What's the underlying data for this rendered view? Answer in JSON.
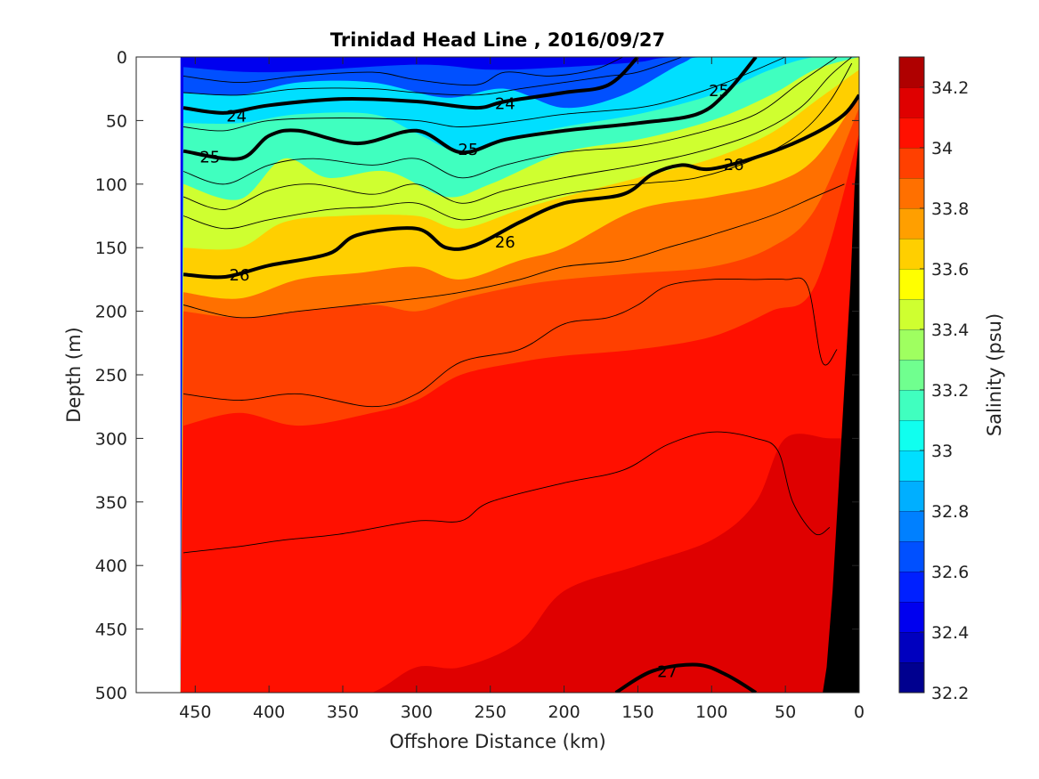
{
  "chart_data": {
    "type": "heatmap",
    "title": "Trinidad Head Line , 2016/09/27",
    "xlabel": "Offshore Distance (km)",
    "ylabel": "Depth (m)",
    "colorbar_label": "Salinity (psu)",
    "xlim": [
      490,
      0
    ],
    "ylim": [
      0,
      500
    ],
    "y_reversed": true,
    "x_reversed": true,
    "xticks": [
      450,
      400,
      350,
      300,
      250,
      200,
      150,
      100,
      50,
      0
    ],
    "yticks": [
      0,
      50,
      100,
      150,
      200,
      250,
      300,
      350,
      400,
      450,
      500
    ],
    "colorbar_range": [
      32.2,
      34.3
    ],
    "colorbar_ticks": [
      32.2,
      32.4,
      32.6,
      32.8,
      33,
      33.2,
      33.4,
      33.6,
      33.8,
      34,
      34.2
    ],
    "colorbar_levels": [
      {
        "min": 32.2,
        "max": 32.3,
        "color": "#00008f"
      },
      {
        "min": 32.3,
        "max": 32.4,
        "color": "#0000bf"
      },
      {
        "min": 32.4,
        "max": 32.5,
        "color": "#0000ef"
      },
      {
        "min": 32.5,
        "max": 32.6,
        "color": "#0020ff"
      },
      {
        "min": 32.6,
        "max": 32.7,
        "color": "#0050ff"
      },
      {
        "min": 32.7,
        "max": 32.8,
        "color": "#0080ff"
      },
      {
        "min": 32.8,
        "max": 32.9,
        "color": "#00afff"
      },
      {
        "min": 32.9,
        "max": 33.0,
        "color": "#00dfff"
      },
      {
        "min": 33.0,
        "max": 33.1,
        "color": "#10ffef"
      },
      {
        "min": 33.1,
        "max": 33.2,
        "color": "#40ffbf"
      },
      {
        "min": 33.2,
        "max": 33.3,
        "color": "#70ff8f"
      },
      {
        "min": 33.3,
        "max": 33.4,
        "color": "#9fff60"
      },
      {
        "min": 33.4,
        "max": 33.5,
        "color": "#cfff30"
      },
      {
        "min": 33.5,
        "max": 33.6,
        "color": "#ffff00"
      },
      {
        "min": 33.6,
        "max": 33.7,
        "color": "#ffcf00"
      },
      {
        "min": 33.7,
        "max": 33.8,
        "color": "#ff9f00"
      },
      {
        "min": 33.8,
        "max": 33.9,
        "color": "#ff7000"
      },
      {
        "min": 33.9,
        "max": 34.0,
        "color": "#ff4000"
      },
      {
        "min": 34.0,
        "max": 34.1,
        "color": "#ff1000"
      },
      {
        "min": 34.1,
        "max": 34.2,
        "color": "#df0000"
      },
      {
        "min": 34.2,
        "max": 34.3,
        "color": "#af0000"
      }
    ],
    "data_extent_x": [
      460,
      0
    ],
    "bathymetry_color": "#000000",
    "salinity_bands": [
      {
        "level": 32.6,
        "depths": [
          [
            458,
            8
          ],
          [
            400,
            12
          ],
          [
            300,
            6
          ],
          [
            250,
            10
          ],
          [
            200,
            8
          ],
          [
            150,
            4
          ],
          [
            120,
            0
          ],
          [
            0,
            0
          ]
        ]
      },
      {
        "level": 32.9,
        "depths": [
          [
            458,
            28
          ],
          [
            420,
            30
          ],
          [
            380,
            20
          ],
          [
            330,
            20
          ],
          [
            280,
            32
          ],
          [
            240,
            25
          ],
          [
            200,
            40
          ],
          [
            160,
            30
          ],
          [
            120,
            5
          ],
          [
            100,
            0
          ],
          [
            0,
            0
          ]
        ]
      },
      {
        "level": 33.1,
        "depths": [
          [
            458,
            52
          ],
          [
            420,
            52
          ],
          [
            380,
            45
          ],
          [
            330,
            45
          ],
          [
            300,
            60
          ],
          [
            270,
            75
          ],
          [
            240,
            65
          ],
          [
            200,
            55
          ],
          [
            150,
            45
          ],
          [
            100,
            30
          ],
          [
            60,
            10
          ],
          [
            30,
            0
          ],
          [
            0,
            0
          ]
        ]
      },
      {
        "level": 33.4,
        "depths": [
          [
            458,
            100
          ],
          [
            420,
            112
          ],
          [
            390,
            80
          ],
          [
            360,
            95
          ],
          [
            320,
            90
          ],
          [
            280,
            110
          ],
          [
            250,
            100
          ],
          [
            200,
            75
          ],
          [
            150,
            65
          ],
          [
            100,
            50
          ],
          [
            60,
            30
          ],
          [
            30,
            10
          ],
          [
            0,
            0
          ]
        ]
      },
      {
        "level": 33.6,
        "depths": [
          [
            458,
            150
          ],
          [
            420,
            150
          ],
          [
            390,
            130
          ],
          [
            350,
            125
          ],
          [
            300,
            125
          ],
          [
            270,
            135
          ],
          [
            230,
            120
          ],
          [
            200,
            110
          ],
          [
            150,
            95
          ],
          [
            100,
            80
          ],
          [
            60,
            60
          ],
          [
            30,
            35
          ],
          [
            0,
            10
          ]
        ]
      },
      {
        "level": 33.8,
        "depths": [
          [
            458,
            185
          ],
          [
            420,
            190
          ],
          [
            380,
            175
          ],
          [
            340,
            170
          ],
          [
            300,
            165
          ],
          [
            270,
            175
          ],
          [
            230,
            160
          ],
          [
            200,
            150
          ],
          [
            150,
            120
          ],
          [
            100,
            110
          ],
          [
            60,
            100
          ],
          [
            30,
            80
          ],
          [
            0,
            30
          ]
        ]
      },
      {
        "level": 33.95,
        "depths": [
          [
            458,
            200
          ],
          [
            420,
            205
          ],
          [
            380,
            200
          ],
          [
            330,
            195
          ],
          [
            300,
            200
          ],
          [
            270,
            190
          ],
          [
            230,
            180
          ],
          [
            200,
            175
          ],
          [
            150,
            170
          ],
          [
            100,
            165
          ],
          [
            60,
            150
          ],
          [
            30,
            120
          ],
          [
            0,
            40
          ]
        ]
      },
      {
        "level": 34.05,
        "depths": [
          [
            458,
            290
          ],
          [
            420,
            280
          ],
          [
            380,
            290
          ],
          [
            330,
            280
          ],
          [
            300,
            270
          ],
          [
            270,
            250
          ],
          [
            230,
            240
          ],
          [
            200,
            235
          ],
          [
            150,
            230
          ],
          [
            100,
            220
          ],
          [
            60,
            200
          ],
          [
            30,
            180
          ],
          [
            0,
            60
          ]
        ]
      },
      {
        "level": 34.15,
        "depths": [
          [
            458,
            520
          ],
          [
            420,
            520
          ],
          [
            380,
            520
          ],
          [
            330,
            500
          ],
          [
            300,
            480
          ],
          [
            270,
            480
          ],
          [
            230,
            460
          ],
          [
            200,
            420
          ],
          [
            150,
            400
          ],
          [
            100,
            380
          ],
          [
            70,
            350
          ],
          [
            50,
            300
          ],
          [
            20,
            300
          ],
          [
            0,
            300
          ]
        ]
      }
    ],
    "density_contours": [
      {
        "label": "24",
        "points": [
          [
            458,
            40
          ],
          [
            430,
            44
          ],
          [
            400,
            38
          ],
          [
            350,
            33
          ],
          [
            300,
            35
          ],
          [
            260,
            40
          ],
          [
            240,
            35
          ],
          [
            200,
            28
          ],
          [
            170,
            22
          ],
          [
            150,
            0
          ]
        ]
      },
      {
        "label": "25",
        "points": [
          [
            458,
            74
          ],
          [
            420,
            80
          ],
          [
            400,
            62
          ],
          [
            380,
            58
          ],
          [
            340,
            68
          ],
          [
            300,
            58
          ],
          [
            270,
            75
          ],
          [
            240,
            65
          ],
          [
            200,
            58
          ],
          [
            150,
            52
          ],
          [
            110,
            45
          ],
          [
            90,
            28
          ],
          [
            70,
            0
          ]
        ]
      },
      {
        "label": "26",
        "points": [
          [
            458,
            171
          ],
          [
            430,
            173
          ],
          [
            400,
            164
          ],
          [
            360,
            155
          ],
          [
            340,
            140
          ],
          [
            300,
            135
          ],
          [
            280,
            150
          ],
          [
            260,
            148
          ],
          [
            230,
            130
          ],
          [
            200,
            115
          ],
          [
            160,
            108
          ],
          [
            140,
            92
          ],
          [
            120,
            85
          ],
          [
            100,
            88
          ],
          [
            60,
            75
          ],
          [
            30,
            60
          ],
          [
            10,
            45
          ],
          [
            0,
            30
          ]
        ]
      },
      {
        "label": "27",
        "points": [
          [
            165,
            500
          ],
          [
            140,
            483
          ],
          [
            110,
            478
          ],
          [
            90,
            486
          ],
          [
            70,
            500
          ]
        ]
      }
    ],
    "thin_contours": [
      [
        [
          458,
          15
        ],
        [
          420,
          20
        ],
        [
          380,
          15
        ],
        [
          330,
          12
        ],
        [
          300,
          18
        ],
        [
          260,
          22
        ],
        [
          240,
          12
        ],
        [
          210,
          15
        ],
        [
          180,
          10
        ],
        [
          160,
          0
        ]
      ],
      [
        [
          458,
          28
        ],
        [
          420,
          30
        ],
        [
          380,
          25
        ],
        [
          330,
          25
        ],
        [
          300,
          28
        ],
        [
          260,
          30
        ],
        [
          230,
          25
        ],
        [
          200,
          20
        ],
        [
          170,
          15
        ],
        [
          150,
          12
        ],
        [
          120,
          0
        ]
      ],
      [
        [
          458,
          55
        ],
        [
          430,
          58
        ],
        [
          400,
          50
        ],
        [
          350,
          48
        ],
        [
          300,
          50
        ],
        [
          270,
          55
        ],
        [
          230,
          50
        ],
        [
          200,
          45
        ],
        [
          150,
          40
        ],
        [
          120,
          32
        ],
        [
          90,
          20
        ],
        [
          50,
          0
        ]
      ],
      [
        [
          458,
          90
        ],
        [
          430,
          100
        ],
        [
          400,
          85
        ],
        [
          370,
          80
        ],
        [
          330,
          85
        ],
        [
          300,
          80
        ],
        [
          270,
          95
        ],
        [
          240,
          85
        ],
        [
          200,
          75
        ],
        [
          150,
          70
        ],
        [
          110,
          60
        ],
        [
          70,
          45
        ],
        [
          40,
          20
        ],
        [
          15,
          0
        ]
      ],
      [
        [
          458,
          110
        ],
        [
          430,
          120
        ],
        [
          400,
          105
        ],
        [
          370,
          100
        ],
        [
          330,
          108
        ],
        [
          300,
          100
        ],
        [
          270,
          115
        ],
        [
          240,
          105
        ],
        [
          200,
          95
        ],
        [
          150,
          85
        ],
        [
          110,
          75
        ],
        [
          70,
          60
        ],
        [
          40,
          40
        ],
        [
          20,
          15
        ],
        [
          5,
          0
        ]
      ],
      [
        [
          458,
          125
        ],
        [
          430,
          135
        ],
        [
          400,
          128
        ],
        [
          360,
          120
        ],
        [
          330,
          118
        ],
        [
          300,
          115
        ],
        [
          270,
          128
        ],
        [
          240,
          120
        ],
        [
          200,
          108
        ],
        [
          150,
          100
        ],
        [
          110,
          95
        ],
        [
          70,
          80
        ],
        [
          40,
          60
        ],
        [
          20,
          35
        ],
        [
          5,
          5
        ]
      ],
      [
        [
          458,
          195
        ],
        [
          420,
          205
        ],
        [
          380,
          200
        ],
        [
          340,
          195
        ],
        [
          300,
          190
        ],
        [
          270,
          185
        ],
        [
          230,
          175
        ],
        [
          200,
          165
        ],
        [
          160,
          160
        ],
        [
          130,
          150
        ],
        [
          100,
          140
        ],
        [
          60,
          125
        ],
        [
          30,
          110
        ],
        [
          10,
          100
        ]
      ],
      [
        [
          458,
          265
        ],
        [
          420,
          270
        ],
        [
          380,
          265
        ],
        [
          330,
          275
        ],
        [
          300,
          265
        ],
        [
          270,
          240
        ],
        [
          230,
          230
        ],
        [
          200,
          210
        ],
        [
          170,
          205
        ],
        [
          150,
          195
        ],
        [
          130,
          180
        ],
        [
          100,
          175
        ],
        [
          70,
          175
        ],
        [
          50,
          175
        ],
        [
          35,
          180
        ],
        [
          25,
          240
        ],
        [
          15,
          230
        ]
      ],
      [
        [
          458,
          390
        ],
        [
          420,
          385
        ],
        [
          390,
          380
        ],
        [
          350,
          375
        ],
        [
          300,
          365
        ],
        [
          270,
          365
        ],
        [
          250,
          350
        ],
        [
          200,
          335
        ],
        [
          160,
          325
        ],
        [
          130,
          305
        ],
        [
          100,
          295
        ],
        [
          70,
          300
        ],
        [
          55,
          310
        ],
        [
          45,
          350
        ],
        [
          30,
          375
        ],
        [
          20,
          370
        ]
      ]
    ],
    "contour_label_positions": [
      {
        "label": "24",
        "x": 422,
        "y": 46
      },
      {
        "label": "24",
        "x": 240,
        "y": 36
      },
      {
        "label": "25",
        "x": 440,
        "y": 78
      },
      {
        "label": "25",
        "x": 265,
        "y": 72
      },
      {
        "label": "25",
        "x": 95,
        "y": 26
      },
      {
        "label": "26",
        "x": 420,
        "y": 171
      },
      {
        "label": "26",
        "x": 240,
        "y": 145
      },
      {
        "label": "26",
        "x": 85,
        "y": 84
      },
      {
        "label": "27",
        "x": 130,
        "y": 483
      }
    ]
  }
}
